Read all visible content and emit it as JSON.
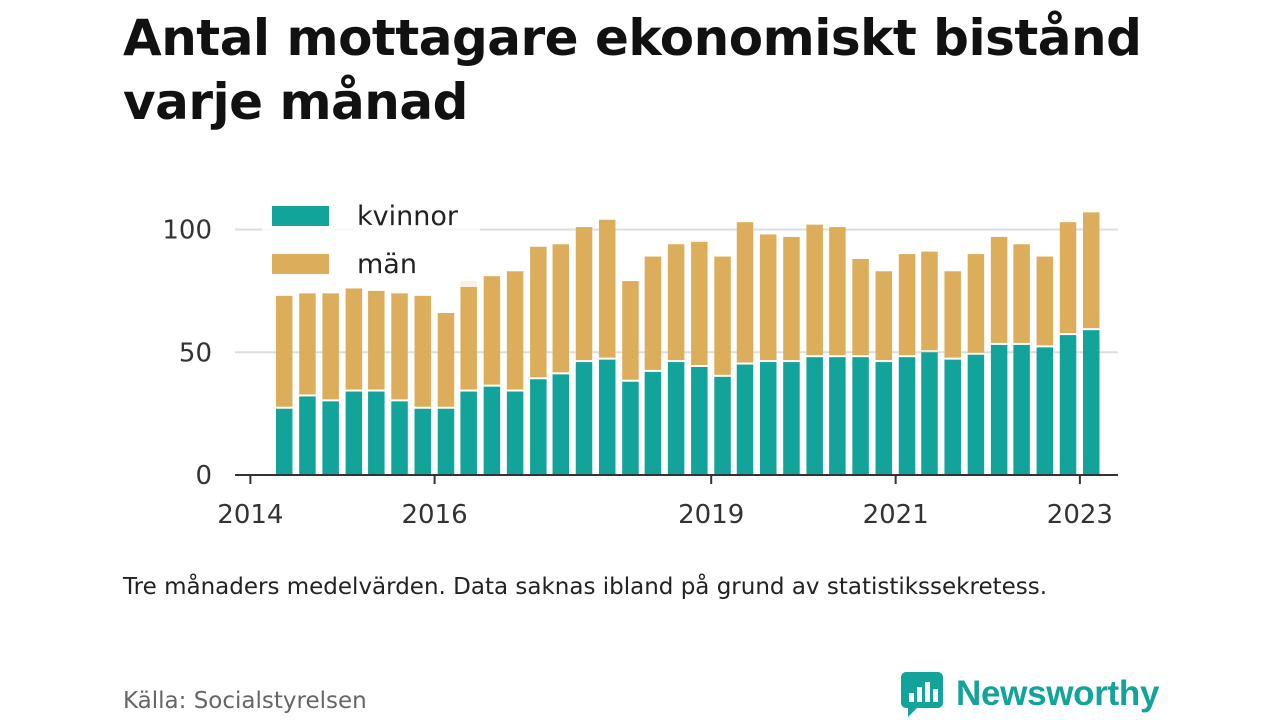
{
  "header": {
    "title": "Antal mottagare ekonomiskt bistånd varje månad"
  },
  "footer": {
    "note": "Tre månaders medelvärden. Data saknas ibland på grund av statistikssekretess.",
    "source": "Källa: Socialstyrelsen",
    "brand": "Newsworthy",
    "brand_icon": "bar-chart-speech-bubble-icon"
  },
  "colors": {
    "kvinnor": "#12a39a",
    "man": "#dcae5c",
    "grid": "#dddddd",
    "axis": "#333333",
    "tick_text": "#333333"
  },
  "chart_data": {
    "type": "bar",
    "stacked": true,
    "title": "Antal mottagare ekonomiskt bistånd varje månad",
    "xlabel": "",
    "ylabel": "",
    "ylim": [
      0,
      110
    ],
    "yticks": [
      0,
      50,
      100
    ],
    "xlim": [
      "2013-11-01",
      "2023-06-01"
    ],
    "x_ticks": [
      {
        "label": "2014",
        "date": "2014-01-01"
      },
      {
        "label": "2016",
        "date": "2016-01-01"
      },
      {
        "label": "2019",
        "date": "2019-01-01"
      },
      {
        "label": "2021",
        "date": "2021-01-01"
      },
      {
        "label": "2023",
        "date": "2023-01-01"
      }
    ],
    "grid": true,
    "legend": "top-left",
    "x": [
      "2014-05",
      "2014-08",
      "2014-11",
      "2015-02",
      "2015-05",
      "2015-08",
      "2015-11",
      "2016-02",
      "2016-05",
      "2016-08",
      "2016-11",
      "2017-02",
      "2017-05",
      "2017-08",
      "2017-11",
      "2018-02",
      "2018-05",
      "2018-08",
      "2018-11",
      "2019-02",
      "2019-05",
      "2019-08",
      "2019-11",
      "2020-02",
      "2020-05",
      "2020-08",
      "2020-11",
      "2021-02",
      "2021-05",
      "2021-08",
      "2021-11",
      "2022-02",
      "2022-05",
      "2022-08",
      "2022-11",
      "2023-02"
    ],
    "series": [
      {
        "name": "kvinnor",
        "values": [
          27,
          32,
          30,
          34,
          34,
          30,
          27,
          27,
          34,
          36,
          34,
          39,
          41,
          46,
          47,
          38,
          42,
          46,
          44,
          40,
          45,
          46,
          46,
          48,
          48,
          48,
          46,
          48,
          50,
          47,
          49,
          53,
          53,
          52,
          57,
          59
        ]
      },
      {
        "name": "män",
        "values": [
          46,
          42,
          44,
          42,
          41,
          44,
          46,
          39,
          45,
          45,
          49,
          54,
          53,
          55,
          57,
          41,
          47,
          48,
          51,
          49,
          58,
          52,
          51,
          54,
          53,
          40,
          37,
          42,
          41,
          36,
          41,
          44,
          41,
          37,
          46,
          48
        ]
      }
    ]
  }
}
